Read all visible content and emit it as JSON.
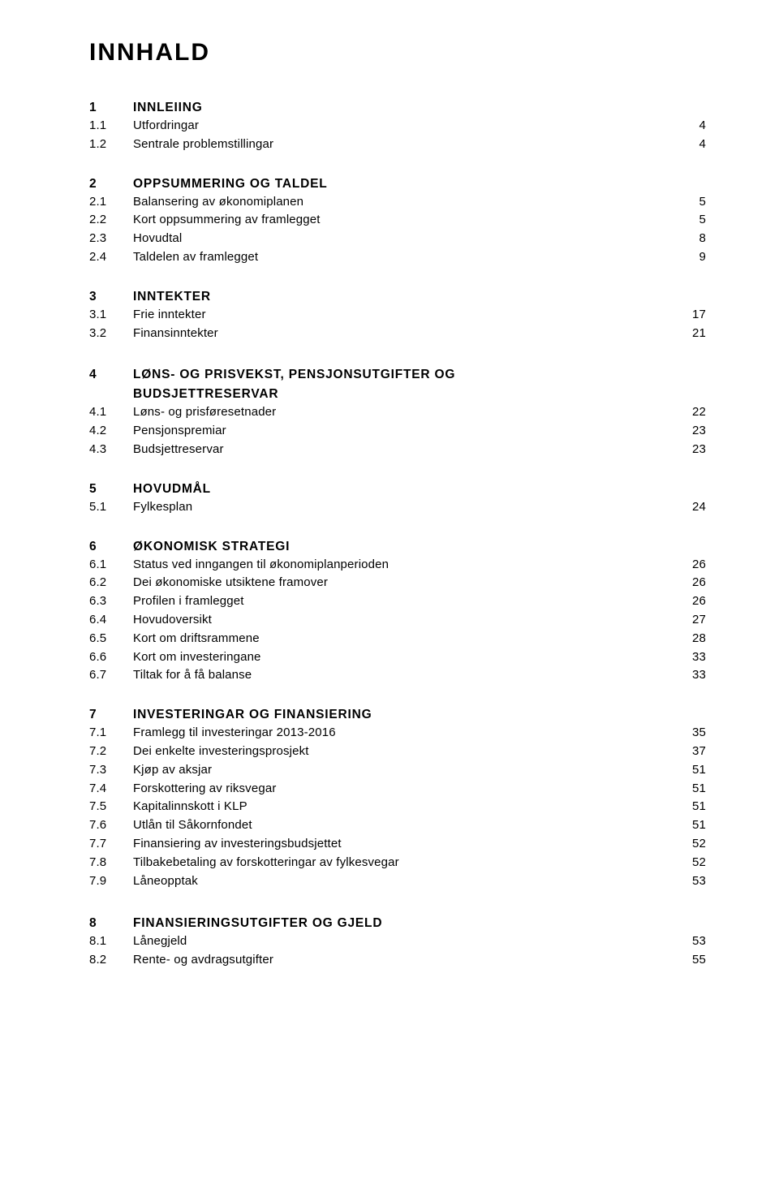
{
  "title": "INNHALD",
  "sections": [
    {
      "num": "1",
      "label": "INNLEIING",
      "entries": [
        {
          "num": "1.1",
          "label": "Utfordringar",
          "page": "4"
        },
        {
          "num": "1.2",
          "label": "Sentrale problemstillingar",
          "page": "4"
        }
      ]
    },
    {
      "num": "2",
      "label": "OPPSUMMERING OG TALDEL",
      "entries": [
        {
          "num": "2.1",
          "label": "Balansering av økonomiplanen",
          "page": "5"
        },
        {
          "num": "2.2",
          "label": "Kort oppsummering av framlegget",
          "page": "5"
        },
        {
          "num": "2.3",
          "label": "Hovudtal",
          "page": "8"
        },
        {
          "num": "2.4",
          "label": "Taldelen av framlegget",
          "page": "9"
        }
      ]
    },
    {
      "num": "3",
      "label": "INNTEKTER",
      "entries": [
        {
          "num": "3.1",
          "label": "Frie inntekter",
          "page": "17"
        },
        {
          "num": "3.2",
          "label": "Finansinntekter",
          "page": "21"
        }
      ]
    },
    {
      "num": "4",
      "label": "LØNS- OG PRISVEKST, PENSJONSUTGIFTER OG BUDSJETTRESERVAR",
      "sublabel_wraps": true,
      "entries": [
        {
          "num": "4.1",
          "label": "Løns- og prisføresetnader",
          "page": "22"
        },
        {
          "num": "4.2",
          "label": "Pensjonspremiar",
          "page": "23"
        },
        {
          "num": "4.3",
          "label": "Budsjettreservar",
          "page": "23"
        }
      ]
    },
    {
      "num": "5",
      "label": "HOVUDMÅL",
      "entries": [
        {
          "num": "5.1",
          "label": "Fylkesplan",
          "page": "24"
        }
      ]
    },
    {
      "num": "6",
      "label": "ØKONOMISK STRATEGI",
      "entries": [
        {
          "num": "6.1",
          "label": "Status ved inngangen til økonomiplanperioden",
          "page": "26"
        },
        {
          "num": "6.2",
          "label": "Dei økonomiske utsiktene framover",
          "page": "26"
        },
        {
          "num": "6.3",
          "label": "Profilen i framlegget",
          "page": "26"
        },
        {
          "num": "6.4",
          "label": "Hovudoversikt",
          "page": "27"
        },
        {
          "num": "6.5",
          "label": "Kort om driftsrammene",
          "page": "28"
        },
        {
          "num": "6.6",
          "label": "Kort om investeringane",
          "page": "33"
        },
        {
          "num": "6.7",
          "label": "Tiltak for å få balanse",
          "page": "33"
        }
      ]
    },
    {
      "num": "7",
      "label": "INVESTERINGAR OG FINANSIERING",
      "entries": [
        {
          "num": "7.1",
          "label": "Framlegg til investeringar 2013-2016",
          "page": "35"
        },
        {
          "num": "7.2",
          "label": "Dei enkelte investeringsprosjekt",
          "page": "37"
        },
        {
          "num": "7.3",
          "label": "Kjøp av aksjar",
          "page": "51"
        },
        {
          "num": "7.4",
          "label": "Forskottering av riksvegar",
          "page": "51"
        },
        {
          "num": "7.5",
          "label": "Kapitalinnskott i KLP",
          "page": "51"
        },
        {
          "num": "7.6",
          "label": "Utlån til Såkornfondet",
          "page": "51"
        },
        {
          "num": "7.7",
          "label": "Finansiering av investeringsbudsjettet",
          "page": "52"
        },
        {
          "num": "7.8",
          "label": "Tilbakebetaling av forskotteringar av fylkesvegar",
          "page": "52"
        },
        {
          "num": "7.9",
          "label": "Låneopptak",
          "page": "53"
        }
      ]
    },
    {
      "num": "8",
      "label": "FINANSIERINGSUTGIFTER OG GJELD",
      "gap_before": true,
      "entries": [
        {
          "num": "8.1",
          "label": "Lånegjeld",
          "page": "53"
        },
        {
          "num": "8.2",
          "label": "Rente- og avdragsutgifter",
          "page": "55"
        }
      ]
    }
  ]
}
